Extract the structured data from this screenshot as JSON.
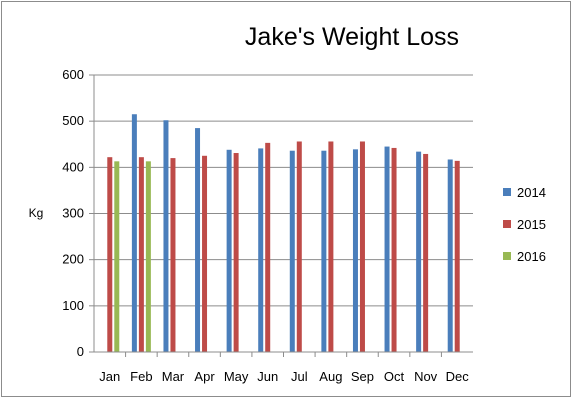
{
  "chart_data": {
    "type": "bar",
    "title": "Jake's Weight Loss",
    "xlabel": "",
    "ylabel": "Kg",
    "ylim": [
      0,
      600
    ],
    "yticks": [
      0,
      100,
      200,
      300,
      400,
      500,
      600
    ],
    "grid": true,
    "legend_position": "right",
    "categories": [
      "Jan",
      "Feb",
      "Mar",
      "Apr",
      "May",
      "Jun",
      "Jul",
      "Aug",
      "Sep",
      "Oct",
      "Nov",
      "Dec"
    ],
    "series": [
      {
        "name": "2014",
        "color": "#4a7ebb",
        "values": [
          null,
          515,
          502,
          485,
          438,
          441,
          436,
          436,
          439,
          445,
          434,
          417
        ]
      },
      {
        "name": "2015",
        "color": "#be4b48",
        "values": [
          422,
          422,
          420,
          425,
          431,
          453,
          456,
          456,
          456,
          442,
          429,
          414
        ]
      },
      {
        "name": "2016",
        "color": "#98b954",
        "values": [
          413,
          413,
          null,
          null,
          null,
          null,
          null,
          null,
          null,
          null,
          null,
          null
        ]
      }
    ]
  }
}
